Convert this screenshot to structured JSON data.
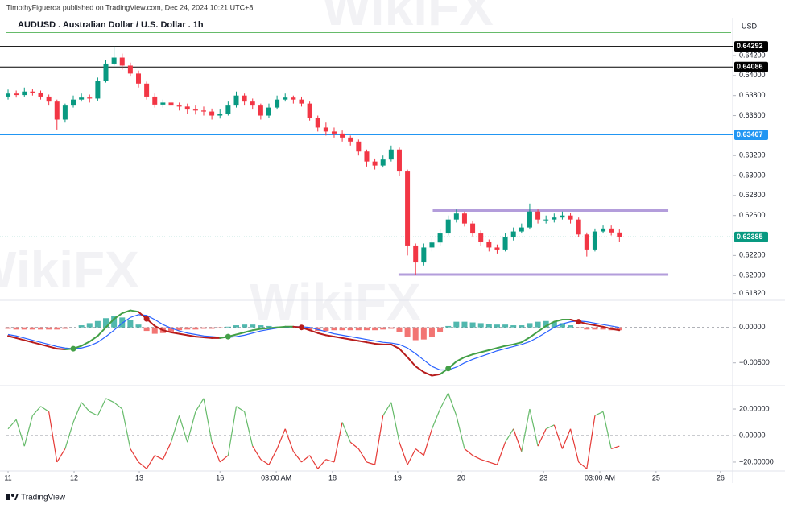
{
  "byline": "TimothyFigueroa published on TradingView.com, Dec 24, 2024 10:21 UTC+8",
  "footer": "TradingView",
  "watermark": "WikiFX",
  "chart_data": [
    {
      "type": "candlestick",
      "title": "AUDUSD . Australian Dollar / U.S. Dollar . 1h",
      "currency": "USD",
      "up_color": "#089981",
      "down_color": "#f23645",
      "open": [
        0.6379,
        0.6382,
        0.63805,
        0.6384,
        0.6383,
        0.6379,
        0.6374,
        0.6356,
        0.637,
        0.6376,
        0.6378,
        0.6377,
        0.6395,
        0.6412,
        0.6418,
        0.641,
        0.6402,
        0.6392,
        0.6379,
        0.6371,
        0.6373,
        0.637,
        0.6369,
        0.6366,
        0.6365,
        0.6364,
        0.636,
        0.6362,
        0.637,
        0.638,
        0.6374,
        0.637,
        0.636,
        0.6368,
        0.6376,
        0.6378,
        0.6376,
        0.6372,
        0.6358,
        0.6348,
        0.6344,
        0.6342,
        0.6338,
        0.6334,
        0.6324,
        0.6314,
        0.631,
        0.6316,
        0.6326,
        0.6304,
        0.623,
        0.6213,
        0.6228,
        0.6233,
        0.6242,
        0.6256,
        0.6262,
        0.6252,
        0.6242,
        0.6234,
        0.6228,
        0.6226,
        0.6238,
        0.6244,
        0.6248,
        0.6264,
        0.6256,
        0.6256,
        0.6258,
        0.626,
        0.6256,
        0.6241,
        0.6226,
        0.6244,
        0.6247,
        0.6243
      ],
      "high": [
        0.6386,
        0.6385,
        0.6388,
        0.6387,
        0.6385,
        0.6381,
        0.6376,
        0.6372,
        0.638,
        0.6382,
        0.6381,
        0.6398,
        0.6416,
        0.64292,
        0.6422,
        0.6413,
        0.6405,
        0.6394,
        0.6382,
        0.6376,
        0.6377,
        0.6373,
        0.6372,
        0.637,
        0.6369,
        0.6367,
        0.6366,
        0.6374,
        0.6384,
        0.6382,
        0.6377,
        0.6372,
        0.6372,
        0.638,
        0.6382,
        0.638,
        0.6379,
        0.6374,
        0.636,
        0.6353,
        0.6348,
        0.6345,
        0.634,
        0.6336,
        0.6326,
        0.6317,
        0.632,
        0.633,
        0.6328,
        0.6306,
        0.6232,
        0.6232,
        0.6237,
        0.6246,
        0.626,
        0.6266,
        0.6264,
        0.6255,
        0.6245,
        0.6236,
        0.6231,
        0.6242,
        0.6248,
        0.6252,
        0.6272,
        0.6266,
        0.626,
        0.6262,
        0.6264,
        0.6263,
        0.6258,
        0.6243,
        0.6247,
        0.625,
        0.625,
        0.6246
      ],
      "low": [
        0.6376,
        0.6378,
        0.6379,
        0.638,
        0.6376,
        0.637,
        0.6346,
        0.6353,
        0.6368,
        0.6374,
        0.6373,
        0.6375,
        0.6393,
        0.641,
        0.6406,
        0.6399,
        0.6388,
        0.6376,
        0.6368,
        0.6368,
        0.6366,
        0.6365,
        0.6362,
        0.6361,
        0.636,
        0.6356,
        0.6357,
        0.636,
        0.6368,
        0.637,
        0.6366,
        0.6356,
        0.6358,
        0.6366,
        0.6374,
        0.6372,
        0.6369,
        0.6355,
        0.6344,
        0.634,
        0.6338,
        0.6334,
        0.633,
        0.632,
        0.6309,
        0.6306,
        0.6308,
        0.6314,
        0.63,
        0.622,
        0.6201,
        0.621,
        0.6224,
        0.623,
        0.624,
        0.6253,
        0.6249,
        0.6239,
        0.623,
        0.6224,
        0.6222,
        0.6224,
        0.6235,
        0.6242,
        0.6246,
        0.6252,
        0.6252,
        0.6253,
        0.6256,
        0.6252,
        0.6238,
        0.6219,
        0.6224,
        0.6242,
        0.624,
        0.6234
      ],
      "close": [
        0.6382,
        0.63805,
        0.6384,
        0.6383,
        0.6379,
        0.6374,
        0.6356,
        0.637,
        0.6376,
        0.6378,
        0.6377,
        0.6395,
        0.6412,
        0.6418,
        0.641,
        0.6402,
        0.6392,
        0.6379,
        0.6371,
        0.6373,
        0.637,
        0.6369,
        0.6366,
        0.6365,
        0.6364,
        0.636,
        0.6362,
        0.637,
        0.638,
        0.6374,
        0.637,
        0.636,
        0.6368,
        0.6376,
        0.6378,
        0.6376,
        0.6372,
        0.6358,
        0.6348,
        0.6344,
        0.6342,
        0.6338,
        0.6334,
        0.6324,
        0.6314,
        0.631,
        0.6316,
        0.6326,
        0.6304,
        0.623,
        0.6213,
        0.6228,
        0.6233,
        0.6242,
        0.6256,
        0.6262,
        0.6252,
        0.6242,
        0.6234,
        0.6228,
        0.6226,
        0.6238,
        0.6244,
        0.6248,
        0.6264,
        0.6256,
        0.6256,
        0.6258,
        0.626,
        0.6256,
        0.6241,
        0.6226,
        0.6244,
        0.6247,
        0.6243,
        0.62385
      ],
      "ylim": [
        0.6176,
        0.6445
      ],
      "yticks": [
        {
          "value": 0.642,
          "label": "0.64200"
        },
        {
          "value": 0.64,
          "label": "0.64000"
        },
        {
          "value": 0.638,
          "label": "0.63800"
        },
        {
          "value": 0.636,
          "label": "0.63600"
        },
        {
          "value": 0.632,
          "label": "0.63200"
        },
        {
          "value": 0.63,
          "label": "0.63000"
        },
        {
          "value": 0.628,
          "label": "0.62800"
        },
        {
          "value": 0.626,
          "label": "0.62600"
        },
        {
          "value": 0.622,
          "label": "0.62200"
        },
        {
          "value": 0.62,
          "label": "0.62000"
        },
        {
          "value": 0.6182,
          "label": "0.61820"
        }
      ],
      "guide_lines": [
        {
          "value": 0.6443,
          "color": "#66bb6a"
        }
      ],
      "levels": [
        {
          "value": 0.64292,
          "label": "0.64292",
          "color": "#000000",
          "style": "solid"
        },
        {
          "value": 0.64086,
          "label": "0.64086",
          "color": "#000000",
          "style": "solid"
        },
        {
          "value": 0.63407,
          "label": "0.63407",
          "color": "#2196f3",
          "style": "solid"
        },
        {
          "value": 0.62385,
          "label": "0.62385",
          "color": "#089981",
          "style": "dotted"
        }
      ],
      "ranges": [
        {
          "value": 0.6265,
          "from": 52.1,
          "to": 81,
          "color": "#b39ddb"
        },
        {
          "value": 0.6201,
          "from": 47.9,
          "to": 81,
          "color": "#b39ddb"
        }
      ]
    },
    {
      "type": "macd",
      "up_color": "#43a047",
      "down_color": "#b71c1c",
      "series": [
        {
          "color": "#b71c1c",
          "values": [
            -0.0012,
            -0.0015,
            -0.0018,
            -0.0021,
            -0.0024,
            -0.0027,
            -0.003,
            -0.0031,
            -0.003,
            -0.0026,
            -0.002,
            -0.0012,
            0,
            0.0012,
            0.002,
            0.0024,
            0.0022,
            0.0012,
            0.0002,
            -0.0004,
            -0.0007,
            -0.0009,
            -0.0011,
            -0.0013,
            -0.0014,
            -0.0015,
            -0.0015,
            -0.0013,
            -0.001,
            -0.0007,
            -0.0004,
            -0.0002,
            -0.0001,
            0,
            0.0001,
            0.0001,
            0,
            -0.0004,
            -0.0008,
            -0.0011,
            -0.0013,
            -0.0015,
            -0.0017,
            -0.0019,
            -0.0021,
            -0.0023,
            -0.0024,
            -0.0024,
            -0.003,
            -0.0042,
            -0.0055,
            -0.0063,
            -0.0068,
            -0.0066,
            -0.0058,
            -0.0048,
            -0.0042,
            -0.0038,
            -0.0035,
            -0.0032,
            -0.0029,
            -0.0026,
            -0.0024,
            -0.0021,
            -0.0014,
            -0.0006,
            0.0002,
            0.0008,
            0.0011,
            0.0011,
            0.0008,
            0.0005,
            0.0003,
            0.0001,
            -0.0002,
            -0.0004
          ]
        },
        {
          "color": "#2962ff",
          "values": [
            -0.001,
            -0.0012,
            -0.0015,
            -0.0018,
            -0.0021,
            -0.0024,
            -0.0027,
            -0.0029,
            -0.003,
            -0.0029,
            -0.0026,
            -0.0021,
            -0.0013,
            -0.0004,
            0.0006,
            0.0014,
            0.0018,
            0.0017,
            0.0011,
            0.0004,
            -0.0001,
            -0.0005,
            -0.0008,
            -0.001,
            -0.0012,
            -0.0013,
            -0.0014,
            -0.0014,
            -0.0013,
            -0.0011,
            -0.0008,
            -0.0005,
            -0.0003,
            -0.0001,
            0,
            0.0001,
            0.0001,
            0,
            -0.0003,
            -0.0006,
            -0.0009,
            -0.0011,
            -0.0013,
            -0.0015,
            -0.0017,
            -0.0019,
            -0.0021,
            -0.0022,
            -0.0024,
            -0.0029,
            -0.0037,
            -0.0046,
            -0.0055,
            -0.006,
            -0.006,
            -0.0056,
            -0.005,
            -0.0045,
            -0.0041,
            -0.0037,
            -0.0033,
            -0.003,
            -0.0027,
            -0.0024,
            -0.002,
            -0.0014,
            -0.0007,
            0,
            0.0005,
            0.0008,
            0.0009,
            0.0008,
            0.0006,
            0.0004,
            0.0002,
            0
          ]
        }
      ],
      "histogram": {
        "up_color": "#26a69a",
        "down_color": "#ef5350",
        "values": [
          -0.0002,
          -0.0003,
          -0.0003,
          -0.0003,
          -0.0003,
          -0.0003,
          -0.0003,
          -0.0002,
          0,
          0.0003,
          0.0006,
          0.0009,
          0.0013,
          0.0016,
          0.0014,
          0.001,
          0.0004,
          -0.0005,
          -0.0009,
          -0.0008,
          -0.0006,
          -0.0004,
          -0.0003,
          -0.0003,
          -0.0002,
          -0.0002,
          -0.0001,
          0.0001,
          0.0003,
          0.0004,
          0.0004,
          0.0003,
          0.0002,
          0.0001,
          0.0001,
          0,
          -0.0001,
          -0.0004,
          -0.0005,
          -0.0005,
          -0.0004,
          -0.0004,
          -0.0004,
          -0.0004,
          -0.0004,
          -0.0004,
          -0.0003,
          -0.0002,
          -0.0006,
          -0.0013,
          -0.0018,
          -0.0017,
          -0.0013,
          -0.0006,
          0.0002,
          0.0008,
          0.0008,
          0.0007,
          0.0006,
          0.0005,
          0.0004,
          0.0004,
          0.0003,
          0.0003,
          0.0006,
          0.0008,
          0.0009,
          0.0008,
          0.0006,
          0.0003,
          -0.0001,
          -0.0003,
          -0.0003,
          -0.0003,
          -0.0004,
          -0.0004
        ]
      },
      "cross_indices": [
        8,
        17,
        27,
        36,
        54,
        70
      ],
      "ylim": [
        -0.0081,
        0.0036
      ],
      "yticks": [
        {
          "value": 0,
          "label": "0.00000"
        },
        {
          "value": -0.005,
          "label": "−0.00500"
        }
      ],
      "zero_line": true
    },
    {
      "type": "line",
      "up_color": "#66bb6a",
      "down_color": "#e53935",
      "values": [
        5,
        12,
        -8,
        15,
        22,
        18,
        -20,
        -10,
        10,
        25,
        18,
        15,
        28,
        25,
        20,
        -10,
        -20,
        -25,
        -15,
        -18,
        -5,
        15,
        -5,
        18,
        28,
        -5,
        -20,
        -15,
        22,
        18,
        -8,
        -18,
        -22,
        -10,
        5,
        -12,
        -20,
        -15,
        -25,
        -18,
        -20,
        10,
        -5,
        -10,
        -20,
        -22,
        15,
        25,
        -5,
        -22,
        -10,
        -15,
        5,
        20,
        32,
        15,
        -10,
        -15,
        -18,
        -20,
        -22,
        -5,
        5,
        -12,
        20,
        -8,
        5,
        8,
        -10,
        5,
        -20,
        -25,
        15,
        18,
        -10,
        -8
      ],
      "ylim": [
        -26.7,
        37
      ],
      "yticks": [
        {
          "value": 20,
          "label": "20.00000"
        },
        {
          "value": 0,
          "label": "0.00000"
        },
        {
          "value": -20,
          "label": "−20.00000"
        }
      ],
      "zero_line": true,
      "xlim": [
        -0.2,
        88.7
      ],
      "xticks": [
        {
          "value": 0,
          "label": "11"
        },
        {
          "value": 8.1,
          "label": "12"
        },
        {
          "value": 16.1,
          "label": "13"
        },
        {
          "value": 26,
          "label": "16"
        },
        {
          "value": 32.9,
          "label": "03:00 AM"
        },
        {
          "value": 39.8,
          "label": "18"
        },
        {
          "value": 47.8,
          "label": "19"
        },
        {
          "value": 55.6,
          "label": "20"
        },
        {
          "value": 65.7,
          "label": "23"
        },
        {
          "value": 72.6,
          "label": "03:00 AM"
        },
        {
          "value": 79.5,
          "label": "25"
        },
        {
          "value": 87.4,
          "label": "26"
        }
      ]
    }
  ]
}
